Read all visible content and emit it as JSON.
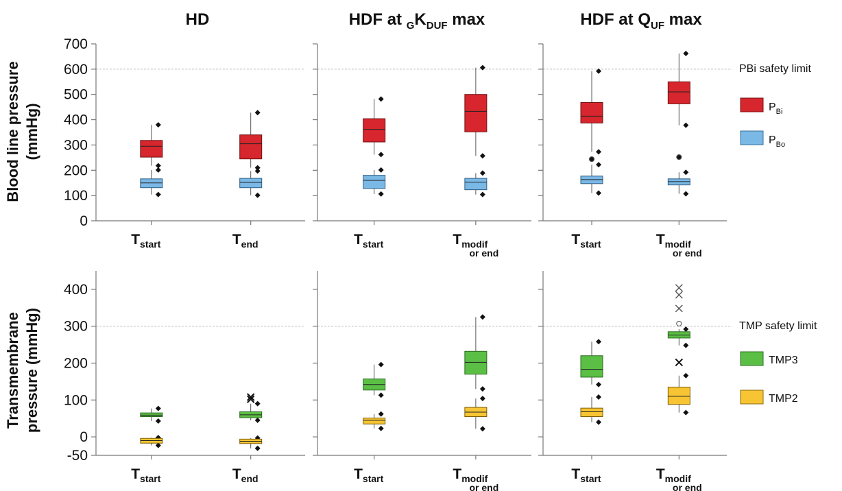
{
  "titles": {
    "hd": "HD",
    "gk_prefix": "HDF at ",
    "gk_sub": "G",
    "gk_main": "K",
    "gk_sub2": "DUF",
    "gk_suffix": " max",
    "quf_prefix": "HDF at Q",
    "quf_sub": "UF",
    "quf_suffix": " max"
  },
  "ylabels": {
    "top_line1": "Blood line pressure",
    "top_line2": "(mmHg)",
    "bottom_line1": "Transmembrane",
    "bottom_line2": "pressure (mmHg)"
  },
  "xcats": {
    "start_main": "T",
    "start_sub": "start",
    "end_main": "T",
    "end_sub": "end",
    "modif_main": "T",
    "modif_sub1": "modif",
    "modif_sub2": "or end"
  },
  "legend": {
    "pbi_limit": "PBi safety limit",
    "pbi_main": "P",
    "pbi_sub": "Bi",
    "pbo_main": "P",
    "pbo_sub": "Bo",
    "tmp_limit": "TMP safety limit",
    "tmp3": "TMP3",
    "tmp2": "TMP2"
  },
  "colors": {
    "pbi": "#d7262d",
    "pbo": "#7ab8e6",
    "tmp3": "#5bbf45",
    "tmp2": "#f7c533",
    "limit": "#bbbbbb"
  },
  "chart_data": [
    {
      "type": "box",
      "row": "blood line pressure",
      "yticks": [
        0,
        100,
        200,
        300,
        400,
        500,
        600,
        700
      ],
      "ylim": [
        0,
        700
      ],
      "safety_limit": 600,
      "panels": [
        {
          "title": "HD",
          "boxes": [
            {
              "cat": "start",
              "series": "PBi",
              "min": 218,
              "q1": 252,
              "med": 295,
              "q3": 318,
              "max": 380,
              "outliers": []
            },
            {
              "cat": "start",
              "series": "PBo",
              "min": 104,
              "q1": 131,
              "med": 150,
              "q3": 166,
              "max": 201,
              "outliers": []
            },
            {
              "cat": "end",
              "series": "PBi",
              "min": 210,
              "q1": 245,
              "med": 305,
              "q3": 340,
              "max": 428,
              "outliers": []
            },
            {
              "cat": "end",
              "series": "PBo",
              "min": 101,
              "q1": 131,
              "med": 152,
              "q3": 168,
              "max": 197,
              "outliers": []
            }
          ]
        },
        {
          "title": "HDF at GKDUF max",
          "boxes": [
            {
              "cat": "start",
              "series": "PBi",
              "min": 262,
              "q1": 312,
              "med": 362,
              "q3": 404,
              "max": 482,
              "outliers": []
            },
            {
              "cat": "start",
              "series": "PBo",
              "min": 106,
              "q1": 128,
              "med": 160,
              "q3": 180,
              "max": 201,
              "outliers": []
            },
            {
              "cat": "modif or end",
              "series": "PBi",
              "min": 257,
              "q1": 352,
              "med": 433,
              "q3": 500,
              "max": 606,
              "outliers": []
            },
            {
              "cat": "modif or end",
              "series": "PBo",
              "min": 104,
              "q1": 123,
              "med": 153,
              "q3": 168,
              "max": 189,
              "outliers": []
            }
          ]
        },
        {
          "title": "HDF at QUF max",
          "boxes": [
            {
              "cat": "start",
              "series": "PBi",
              "min": 273,
              "q1": 387,
              "med": 414,
              "q3": 468,
              "max": 592,
              "outliers": []
            },
            {
              "cat": "start",
              "series": "PBo",
              "min": 110,
              "q1": 147,
              "med": 163,
              "q3": 177,
              "max": 222,
              "outliers": [
                244
              ]
            },
            {
              "cat": "modif or end",
              "series": "PBi",
              "min": 378,
              "q1": 463,
              "med": 510,
              "q3": 550,
              "max": 662,
              "outliers": []
            },
            {
              "cat": "modif or end",
              "series": "PBo",
              "min": 107,
              "q1": 142,
              "med": 155,
              "q3": 166,
              "max": 192,
              "outliers": [
                252
              ]
            }
          ]
        }
      ]
    },
    {
      "type": "box",
      "row": "transmembrane pressure",
      "yticks": [
        -50,
        0,
        100,
        200,
        300,
        400
      ],
      "ylim": [
        -50,
        450
      ],
      "safety_limit": 300,
      "panels": [
        {
          "title": "HD",
          "boxes": [
            {
              "cat": "start",
              "series": "TMP3",
              "min": 43,
              "q1": 55,
              "med": 59,
              "q3": 65,
              "max": 77,
              "outliers": []
            },
            {
              "cat": "start",
              "series": "TMP2",
              "min": -23,
              "q1": -17,
              "med": -10,
              "q3": -4,
              "max": -2,
              "outliers": []
            },
            {
              "cat": "end",
              "series": "TMP3",
              "min": 45,
              "q1": 52,
              "med": 60,
              "q3": 68,
              "max": 90,
              "outliers": [
                102,
                108
              ]
            },
            {
              "cat": "end",
              "series": "TMP2",
              "min": -31,
              "q1": -18,
              "med": -12,
              "q3": -6,
              "max": -3,
              "outliers": []
            }
          ]
        },
        {
          "title": "HDF at GKDUF max",
          "boxes": [
            {
              "cat": "start",
              "series": "TMP3",
              "min": 113,
              "q1": 127,
              "med": 142,
              "q3": 157,
              "max": 196,
              "outliers": []
            },
            {
              "cat": "start",
              "series": "TMP2",
              "min": 23,
              "q1": 35,
              "med": 45,
              "q3": 51,
              "max": 62,
              "outliers": []
            },
            {
              "cat": "modif or end",
              "series": "TMP3",
              "min": 130,
              "q1": 170,
              "med": 202,
              "q3": 232,
              "max": 325,
              "outliers": []
            },
            {
              "cat": "modif or end",
              "series": "TMP2",
              "min": 22,
              "q1": 55,
              "med": 67,
              "q3": 80,
              "max": 104,
              "outliers": []
            }
          ]
        },
        {
          "title": "HDF at QUF max",
          "boxes": [
            {
              "cat": "start",
              "series": "TMP3",
              "min": 142,
              "q1": 162,
              "med": 183,
              "q3": 220,
              "max": 258,
              "outliers": []
            },
            {
              "cat": "start",
              "series": "TMP2",
              "min": 40,
              "q1": 55,
              "med": 68,
              "q3": 78,
              "max": 108,
              "outliers": []
            },
            {
              "cat": "modif or end",
              "series": "TMP3",
              "min": 248,
              "q1": 268,
              "med": 276,
              "q3": 285,
              "max": 292,
              "outliers": [
                307,
                348,
                385,
                404,
                202
              ]
            },
            {
              "cat": "modif or end",
              "series": "TMP2",
              "min": 66,
              "q1": 88,
              "med": 110,
              "q3": 135,
              "max": 166,
              "outliers": []
            }
          ]
        }
      ]
    }
  ]
}
